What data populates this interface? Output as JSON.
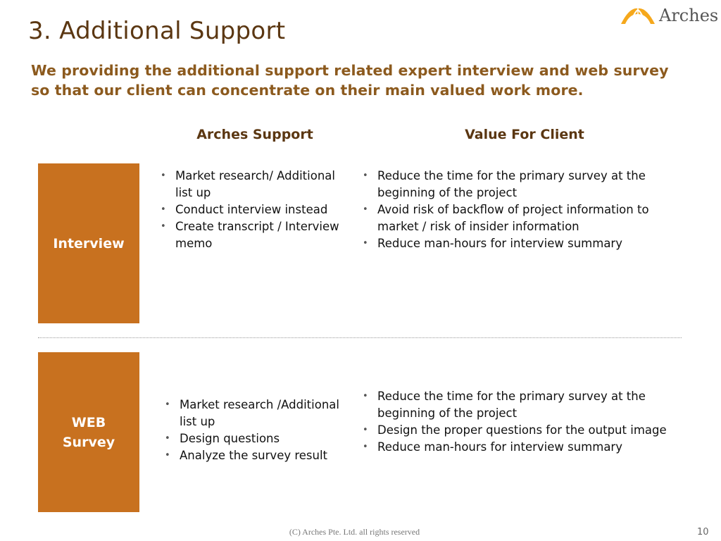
{
  "logo": {
    "text": "Arches",
    "color": "#f5a81c"
  },
  "title": "3. Additional Support",
  "subtitle": {
    "line1": "We providing the additional support related expert interview and web survey",
    "line2": "so that our client can concentrate on their main valued work more."
  },
  "columns": {
    "support": "Arches Support",
    "value": "Value For Client"
  },
  "colors": {
    "title": "#5b3712",
    "subtitle": "#8c5a1e",
    "box": "#c8711f"
  },
  "rows": [
    {
      "label": "Interview",
      "support": [
        "Market research/ Additional list up",
        "Conduct interview instead",
        "Create transcript / Interview memo"
      ],
      "value": [
        "Reduce the time for the primary survey at the beginning of the project",
        "Avoid risk of backflow of project information to market / risk of insider information",
        "Reduce man-hours for interview summary"
      ]
    },
    {
      "label_line1": "WEB",
      "label_line2": "Survey",
      "support": [
        "Market research /Additional list up",
        "Design questions",
        "Analyze the survey result"
      ],
      "value": [
        "Reduce the time for the primary survey at the beginning of the project",
        "Design the proper questions for the output image",
        "Reduce man-hours for interview summary"
      ]
    }
  ],
  "footer": "(C) Arches Pte. Ltd. all rights reserved",
  "page_number": "10"
}
